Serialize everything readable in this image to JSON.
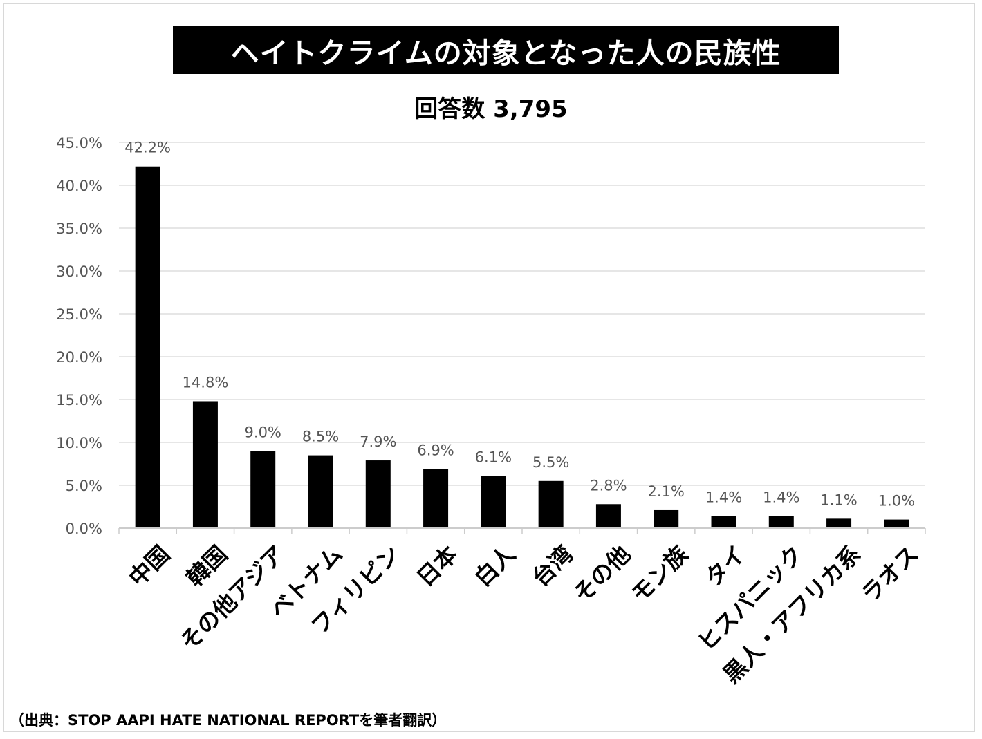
{
  "chart_data": {
    "type": "bar",
    "title": "ヘイトクライムの対象となった人の民族性",
    "subtitle": "回答数  3,795",
    "source": "（出典：STOP AAPI HATE NATIONAL REPORTを筆者翻訳）",
    "categories": [
      "中国",
      "韓国",
      "その他アジア",
      "ベトナム",
      "フィリピン",
      "日本",
      "白人",
      "台湾",
      "その他",
      "モン族",
      "タイ",
      "ヒスパニック",
      "黒人・アフリカ系",
      "ラオス"
    ],
    "values": [
      42.2,
      14.8,
      9.0,
      8.5,
      7.9,
      6.9,
      6.1,
      5.5,
      2.8,
      2.1,
      1.4,
      1.4,
      1.1,
      1.0
    ],
    "value_labels": [
      "42.2%",
      "14.8%",
      "9.0%",
      "8.5%",
      "7.9%",
      "6.9%",
      "6.1%",
      "5.5%",
      "2.8%",
      "2.1%",
      "1.4%",
      "1.4%",
      "1.1%",
      "1.0%"
    ],
    "yticks": [
      "0.0%",
      "5.0%",
      "10.0%",
      "15.0%",
      "20.0%",
      "25.0%",
      "30.0%",
      "35.0%",
      "40.0%",
      "45.0%"
    ],
    "ylim": [
      0,
      45
    ],
    "grid": true,
    "colors": {
      "bar": "#000000",
      "grid": "#dddddd",
      "axis": "#cccccc"
    }
  }
}
